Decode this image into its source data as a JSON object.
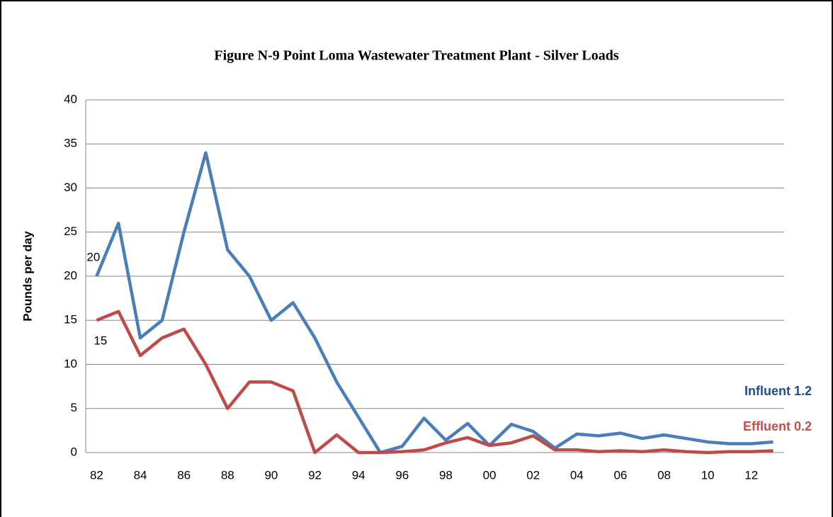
{
  "chart_data": {
    "type": "line",
    "title": "Figure N-9  Point Loma Wastewater Treatment Plant - Silver Loads",
    "y_label": "Pounds per day",
    "categories": [
      "82",
      null,
      "84",
      null,
      "86",
      null,
      "88",
      null,
      "90",
      null,
      "92",
      null,
      "94",
      null,
      "96",
      null,
      "98",
      null,
      "00",
      null,
      "02",
      null,
      "04",
      null,
      "06",
      null,
      "08",
      null,
      "10",
      null,
      "12",
      null
    ],
    "series": [
      {
        "name": "Influent",
        "color": "#4a7ebb",
        "values": [
          20,
          26,
          13,
          15,
          25,
          34,
          23,
          20,
          15,
          17,
          13,
          8,
          4,
          0,
          0.7,
          3.9,
          1.4,
          3.3,
          0.8,
          3.2,
          2.4,
          0.5,
          2.1,
          1.9,
          2.2,
          1.6,
          2.0,
          1.6,
          1.2,
          1.0,
          1.0,
          1.2
        ]
      },
      {
        "name": "Effluent",
        "color": "#be4b48",
        "values": [
          15,
          16,
          11,
          13,
          14,
          10,
          5,
          8,
          8,
          7,
          0,
          2,
          0,
          0,
          0.1,
          0.3,
          1.1,
          1.7,
          0.8,
          1.1,
          1.9,
          0.3,
          0.3,
          0.1,
          0.2,
          0.1,
          0.3,
          0.1,
          0,
          0.1,
          0.1,
          0.2
        ]
      }
    ],
    "annotations": [
      {
        "text": "Influent 1.2",
        "color": "#1f4e8c"
      },
      {
        "text": "Effluent 0.2",
        "color": "#c0504d"
      }
    ],
    "ylim": [
      0,
      40
    ],
    "yticks": [
      0,
      5,
      10,
      15,
      20,
      25,
      30,
      35,
      40
    ],
    "grid": true
  }
}
